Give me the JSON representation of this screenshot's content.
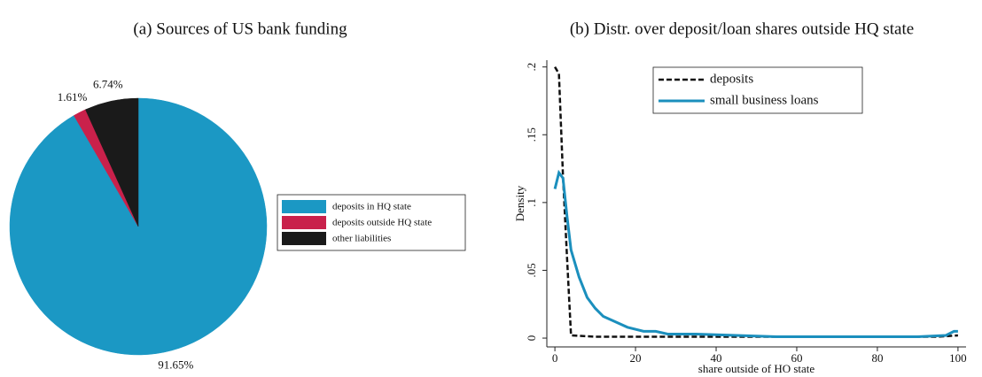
{
  "chart_data": [
    {
      "type": "pie",
      "title": "(a) Sources of US bank funding",
      "categories": [
        "deposits in HQ state",
        "deposits outside HQ state",
        "other liabilities"
      ],
      "values": [
        91.65,
        1.61,
        6.74
      ],
      "value_labels": [
        "91.65%",
        "1.61%",
        "6.74%"
      ],
      "colors": [
        "#1b98c4",
        "#c9214b",
        "#1a1a1a"
      ],
      "direction": "clockwise",
      "start": "top",
      "legend": "right"
    },
    {
      "type": "line",
      "title": "(b) Distr. over deposit/loan shares outside HQ state",
      "x_label": "share outside of HO state",
      "y_label": "Density",
      "xlim": [
        -2,
        102
      ],
      "ylim": [
        -0.0065,
        0.205
      ],
      "xticks": [
        0,
        20,
        40,
        60,
        80,
        100
      ],
      "yticks": [
        0,
        {
          "value": 0.05,
          "label": ".05"
        },
        {
          "value": 0.1,
          "label": ".1"
        },
        {
          "value": 0.15,
          "label": ".15"
        },
        {
          "value": 0.2,
          "label": ".2"
        }
      ],
      "legend": "top",
      "series": [
        {
          "name": "deposits",
          "color": "#111111",
          "style": "dashed",
          "x": [
            0,
            1,
            2,
            3,
            4,
            10,
            30,
            50,
            70,
            90,
            95,
            100
          ],
          "values": [
            0.2,
            0.195,
            0.12,
            0.06,
            0.002,
            0.001,
            0.001,
            0.001,
            0.001,
            0.001,
            0.001,
            0.002
          ]
        },
        {
          "name": "small business loans",
          "color": "#1b8fbd",
          "style": "solid",
          "x": [
            0,
            1,
            2,
            3,
            4,
            6,
            8,
            10,
            12,
            15,
            18,
            22,
            25,
            28,
            35,
            45,
            55,
            70,
            90,
            97,
            99,
            100
          ],
          "values": [
            0.11,
            0.122,
            0.118,
            0.09,
            0.065,
            0.045,
            0.03,
            0.022,
            0.016,
            0.012,
            0.008,
            0.005,
            0.005,
            0.003,
            0.003,
            0.002,
            0.001,
            0.001,
            0.001,
            0.002,
            0.005,
            0.005
          ]
        }
      ]
    }
  ]
}
